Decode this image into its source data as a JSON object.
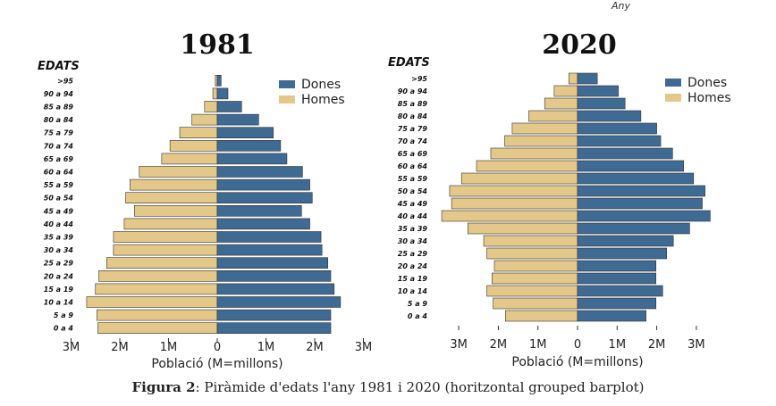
{
  "header_note": "Any",
  "caption": {
    "figure_label": "Figura 2",
    "text": ": Piràmide d'edats l'any 1981 i 2020 (horitzontal grouped barplot)"
  },
  "colors": {
    "dones": "#3f6a93",
    "homes": "#e3c88a",
    "bar_edge": "#333333"
  },
  "chart_data": [
    {
      "type": "bar",
      "orientation": "horizontal-population-pyramid",
      "title": "1981",
      "y_axis_title": "EDATS",
      "xlabel": "Població (M=millons)",
      "xlim": [
        -3,
        3
      ],
      "xticks": [
        -3,
        -2,
        -1,
        0,
        1,
        2,
        3
      ],
      "xtick_labels": [
        "3M",
        "2M",
        "1M",
        "0",
        "1M",
        "2M",
        "3M"
      ],
      "legend_position": "top-right",
      "categories": [
        ">95",
        "90 a 94",
        "85 a 89",
        "80 a 84",
        "75 a 79",
        "70 a 74",
        "65 a 69",
        "60 a 64",
        "55 a 59",
        "50 a 54",
        "45 a 49",
        "40 a 44",
        "35 a 39",
        "30 a 34",
        "25 a 29",
        "20 a 24",
        "15 a 19",
        "10 a 14",
        "5 a 9",
        "0 a 4"
      ],
      "series": [
        {
          "name": "Dones",
          "side": "right",
          "values": [
            0.08,
            0.22,
            0.5,
            0.85,
            1.15,
            1.3,
            1.43,
            1.75,
            1.9,
            1.95,
            1.73,
            1.9,
            2.13,
            2.15,
            2.27,
            2.33,
            2.4,
            2.53,
            2.33,
            2.33
          ]
        },
        {
          "name": "Homes",
          "side": "left",
          "values": [
            0.04,
            0.09,
            0.26,
            0.52,
            0.77,
            0.97,
            1.14,
            1.6,
            1.79,
            1.88,
            1.7,
            1.91,
            2.13,
            2.13,
            2.27,
            2.43,
            2.5,
            2.68,
            2.47,
            2.45
          ]
        }
      ]
    },
    {
      "type": "bar",
      "orientation": "horizontal-population-pyramid",
      "title": "2020",
      "y_axis_title": "EDATS",
      "xlabel": "Població (M=millons)",
      "xlim": [
        -3,
        3
      ],
      "xticks": [
        -3,
        -2,
        -1,
        0,
        1,
        2,
        3
      ],
      "xtick_labels": [
        "3M",
        "2M",
        "1M",
        "0",
        "1M",
        "2M",
        "3M"
      ],
      "legend_position": "top-right",
      "categories": [
        ">95",
        "90 a 94",
        "85 a 89",
        "80 a 84",
        "75 a 79",
        "70 a 74",
        "65 a 69",
        "60 a 64",
        "55 a 59",
        "50 a 54",
        "45 a 49",
        "40 a 44",
        "35 a 39",
        "30 a 34",
        "25 a 29",
        "20 a 24",
        "15 a 19",
        "10 a 14",
        "5 a 9",
        "0 a 4"
      ],
      "series": [
        {
          "name": "Dones",
          "side": "right",
          "values": [
            0.5,
            1.03,
            1.2,
            1.6,
            2.0,
            2.1,
            2.4,
            2.68,
            2.93,
            3.22,
            3.15,
            3.35,
            2.83,
            2.42,
            2.25,
            1.98,
            1.98,
            2.15,
            1.98,
            1.73
          ]
        },
        {
          "name": "Homes",
          "side": "left",
          "values": [
            0.22,
            0.59,
            0.83,
            1.23,
            1.65,
            1.84,
            2.19,
            2.55,
            2.93,
            3.23,
            3.18,
            3.43,
            2.77,
            2.37,
            2.29,
            2.1,
            2.16,
            2.29,
            2.13,
            1.82
          ]
        }
      ]
    }
  ]
}
